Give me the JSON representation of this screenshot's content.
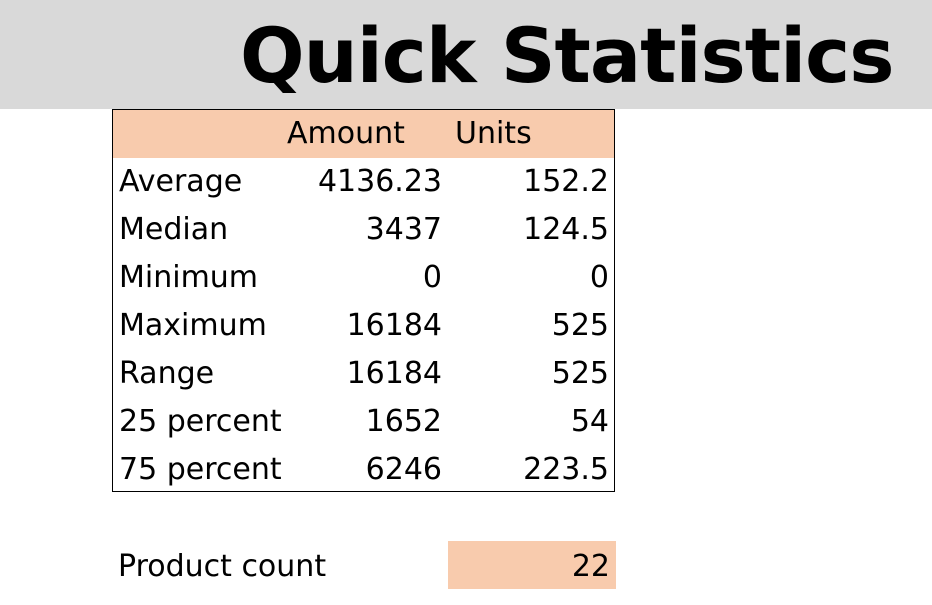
{
  "title": "Quick Statistics",
  "table": {
    "headers": {
      "amount": "Amount",
      "units": "Units"
    },
    "rows": [
      {
        "label": "Average",
        "amount": "4136.23",
        "units": "152.2"
      },
      {
        "label": "Median",
        "amount": "3437",
        "units": "124.5"
      },
      {
        "label": "Minimum",
        "amount": "0",
        "units": "0"
      },
      {
        "label": "Maximum",
        "amount": "16184",
        "units": "525"
      },
      {
        "label": "Range",
        "amount": "16184",
        "units": "525"
      },
      {
        "label": "25 percent",
        "amount": "1652",
        "units": "54"
      },
      {
        "label": "75 percent",
        "amount": "6246",
        "units": "223.5"
      }
    ]
  },
  "product_count": {
    "label": "Product count",
    "value": "22"
  },
  "colors": {
    "title_band": "#d9d9d9",
    "header_fill": "#f8cbad"
  }
}
